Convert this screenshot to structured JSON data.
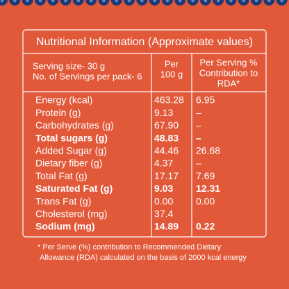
{
  "table": {
    "title": "Nutritional Information (Approximate values)",
    "header": {
      "serving": [
        "Serving size- 30 g",
        "No. of Servings per pack- 6"
      ],
      "per_100g": [
        "Per",
        "100 g"
      ],
      "per_serving": [
        "Per Serving %",
        "Contribution to",
        "RDA*"
      ]
    },
    "rows": [
      {
        "nutrient": "Energy (kcal)",
        "per_100g": "463.28",
        "rda": "6.95"
      },
      {
        "nutrient": "Protein (g)",
        "per_100g": "9.13",
        "rda": "–"
      },
      {
        "nutrient": "Carbohydrates (g)",
        "per_100g": "67.90",
        "rda": "–"
      },
      {
        "nutrient": "Total sugars (g)",
        "per_100g": "48.83",
        "rda": "–",
        "bold": true
      },
      {
        "nutrient": "Added Sugar (g)",
        "per_100g": "44.46",
        "rda": "26.68"
      },
      {
        "nutrient": "Dietary fiber (g)",
        "per_100g": "4.37",
        "rda": "–"
      },
      {
        "nutrient": "Total Fat (g)",
        "per_100g": "17.17",
        "rda": "7.69"
      },
      {
        "nutrient": "Saturated Fat (g)",
        "per_100g": "9.03",
        "rda": "12.31",
        "bold": true
      },
      {
        "nutrient": "Trans Fat (g)",
        "per_100g": "0.00",
        "rda": "0.00"
      },
      {
        "nutrient": "Cholesterol (mg)",
        "per_100g": "37.4"
      },
      {
        "nutrient": "Sodium (mg)",
        "per_100g": "14.89",
        "rda": "0.22",
        "bold": true
      }
    ],
    "footnote": [
      "* Per Serve (%) contribution to Recommended Dietary",
      "Allowance (RDA) calculated on the basis of 2000 kcal energy"
    ]
  }
}
